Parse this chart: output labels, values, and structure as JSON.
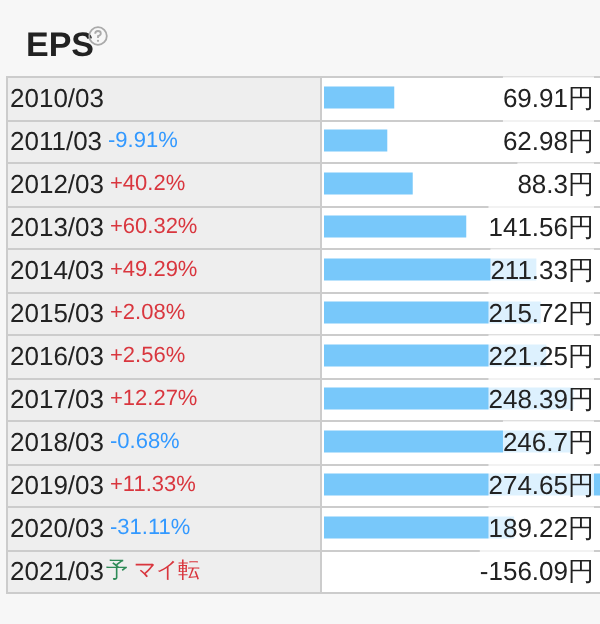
{
  "chart_data": {
    "type": "bar",
    "title": "EPS",
    "orientation": "horizontal",
    "tick_labels": "y",
    "grid": true,
    "color": "#78c8fa",
    "categories": [
      "2010/03",
      "2011/03 -9.91%",
      "2012/03 +40.2%",
      "2013/03 +60.32%",
      "2014/03 +49.29%",
      "2015/03 +2.08%",
      "2016/03 +2.56%",
      "2017/03 +12.27%",
      "2018/03 -0.68%",
      "2019/03 +11.33%",
      "2020/03 -31.11%",
      "2021/03予 マイ転"
    ],
    "values": [
      69.91,
      62.98,
      88.3,
      141.56,
      211.33,
      215.72,
      221.25,
      248.39,
      246.7,
      274.65,
      189.22,
      null
    ],
    "value_labels": [
      "69.91円",
      "62.98円",
      "88.3円",
      "141.56円",
      "211.33円",
      "215.72円",
      "221.25円",
      "248.39円",
      "246.7円",
      "274.65円",
      "189.22円",
      "-156.09円"
    ]
  }
}
